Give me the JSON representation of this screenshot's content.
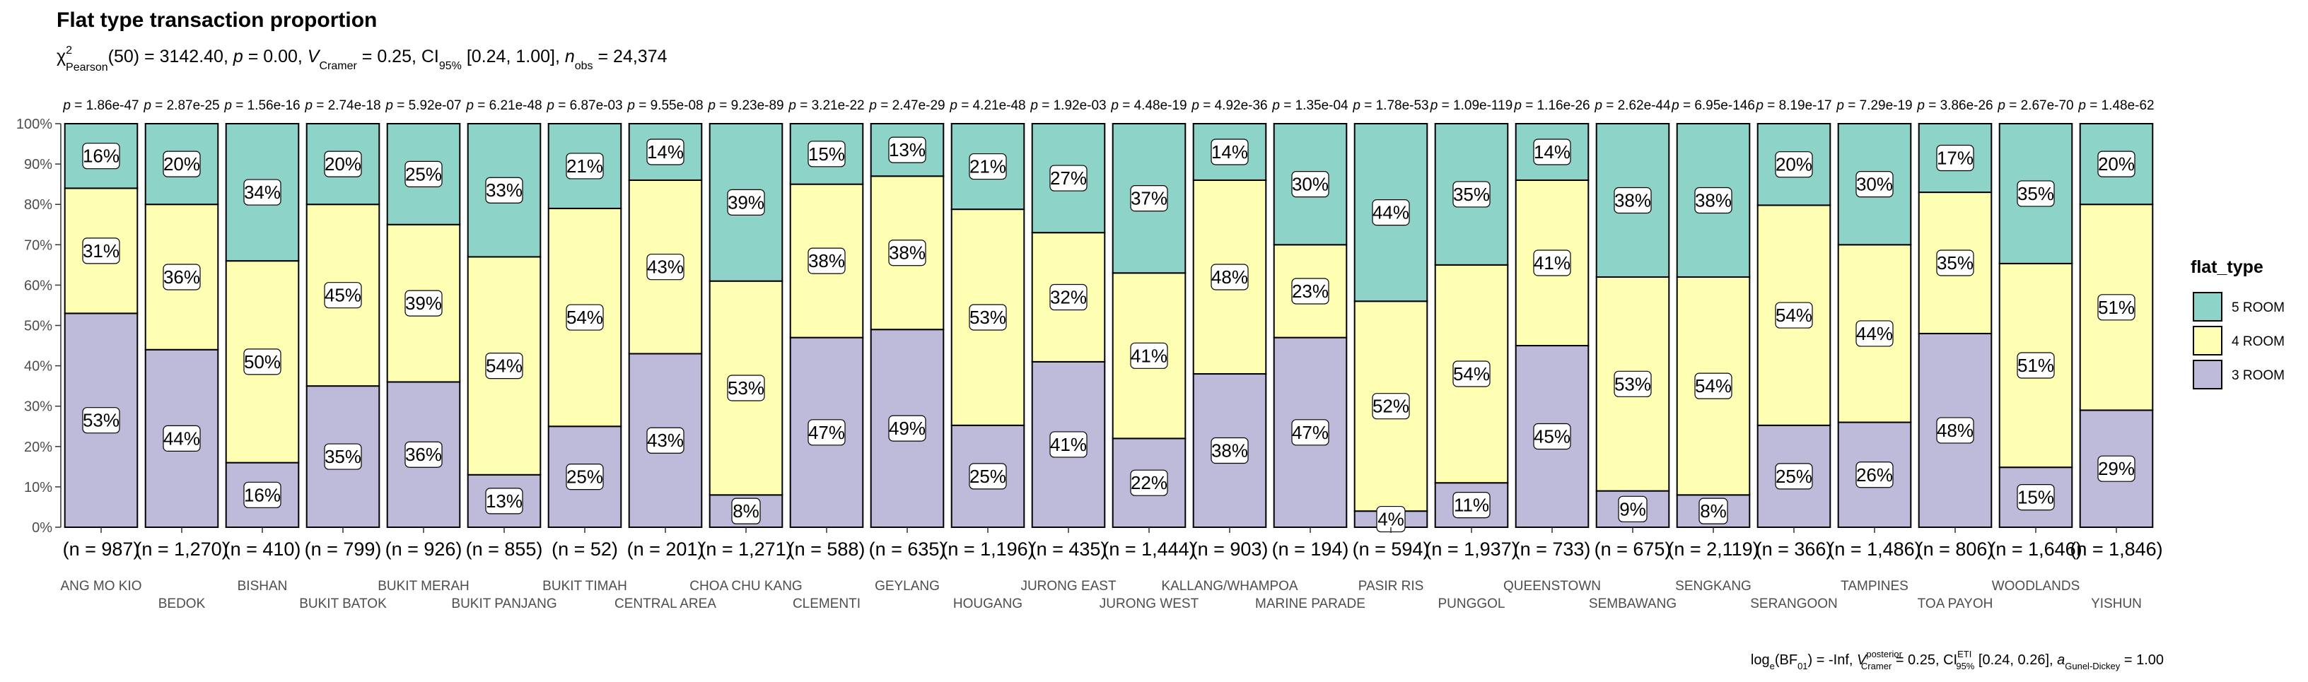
{
  "chart_data": {
    "type": "bar",
    "stacked": "percent",
    "title": "Flat type transaction proportion",
    "subtitle": {
      "chi": "χ",
      "sup2": "2",
      "pearson": "Pearson",
      "df": "(50) = 3142.40, ",
      "p": "p",
      "pval": " = 0.00, ",
      "vhat": "V",
      "cramer": "Cramer",
      "vval": " = 0.25, CI",
      "ci_sub": "95%",
      "ci_val": " [0.24, 1.00], ",
      "n": "n",
      "obs": "obs",
      "nval": " = 24,374"
    },
    "caption": {
      "log": "log",
      "e": "e",
      "bf": "(BF",
      "zero1": "01",
      "bfval": ") = -Inf, ",
      "vhat": "V",
      "post": "posterior",
      "cramer": "Cramer",
      "vval": " = 0.25, CI",
      "eti": "ETI",
      "ci95": "95%",
      "cival": " [0.24, 0.26], ",
      "a": "a",
      "gd": "Gunel-Dickey",
      "aval": " = 1.00"
    },
    "ylim": [
      0,
      1
    ],
    "y_ticks": [
      "0%",
      "10%",
      "20%",
      "30%",
      "40%",
      "50%",
      "60%",
      "70%",
      "80%",
      "90%",
      "100%"
    ],
    "legend": {
      "title": "flat_type",
      "position": "right",
      "items": [
        {
          "label": "5 ROOM",
          "color": "#8dd3c7"
        },
        {
          "label": "4 ROOM",
          "color": "#ffffb3"
        },
        {
          "label": "3 ROOM",
          "color": "#bebada"
        }
      ]
    },
    "categories": [
      "ANG MO KIO",
      "BEDOK",
      "BISHAN",
      "BUKIT BATOK",
      "BUKIT MERAH",
      "BUKIT PANJANG",
      "BUKIT TIMAH",
      "CENTRAL AREA",
      "CHOA CHU KANG",
      "CLEMENTI",
      "GEYLANG",
      "HOUGANG",
      "JURONG EAST",
      "JURONG WEST",
      "KALLANG/WHAMPOA",
      "MARINE PARADE",
      "PASIR RIS",
      "PUNGGOL",
      "QUEENSTOWN",
      "SEMBAWANG",
      "SENGKANG",
      "SERANGOON",
      "TAMPINES",
      "TOA PAYOH",
      "WOODLANDS",
      "YISHUN"
    ],
    "series": [
      {
        "name": "3 ROOM",
        "color": "#bebada",
        "values": [
          53,
          44,
          16,
          35,
          36,
          13,
          25,
          43,
          8,
          47,
          49,
          25,
          41,
          22,
          38,
          47,
          4,
          11,
          45,
          9,
          8,
          25,
          26,
          48,
          15,
          29
        ]
      },
      {
        "name": "4 ROOM",
        "color": "#ffffb3",
        "values": [
          31,
          36,
          50,
          45,
          39,
          54,
          54,
          43,
          53,
          38,
          38,
          53,
          32,
          41,
          48,
          23,
          52,
          54,
          41,
          53,
          54,
          54,
          44,
          35,
          51,
          51
        ]
      },
      {
        "name": "5 ROOM",
        "color": "#8dd3c7",
        "values": [
          16,
          20,
          34,
          20,
          25,
          33,
          21,
          14,
          39,
          15,
          13,
          21,
          27,
          37,
          14,
          30,
          44,
          35,
          14,
          38,
          38,
          20,
          30,
          17,
          35,
          20
        ]
      }
    ],
    "p_values": [
      "1.86e-47",
      "2.87e-25",
      "1.56e-16",
      "2.74e-18",
      "5.92e-07",
      "6.21e-48",
      "6.87e-03",
      "9.55e-08",
      "9.23e-89",
      "3.21e-22",
      "2.47e-29",
      "4.21e-48",
      "1.92e-03",
      "4.48e-19",
      "4.92e-36",
      "1.35e-04",
      "1.78e-53",
      "1.09e-119",
      "1.16e-26",
      "2.62e-44",
      "6.95e-146",
      "8.19e-17",
      "7.29e-19",
      "3.86e-26",
      "2.67e-70",
      "1.48e-62"
    ],
    "p_prefix": "p = ",
    "counts": [
      "987",
      "1,270",
      "410",
      "799",
      "926",
      "855",
      "52",
      "201",
      "1,271",
      "588",
      "635",
      "1,196",
      "435",
      "1,444",
      "903",
      "194",
      "594",
      "1,937",
      "733",
      "675",
      "2,119",
      "366",
      "1,486",
      "806",
      "1,646",
      "1,846"
    ],
    "n_prefix": "(n = ",
    "n_suffix": ")"
  }
}
